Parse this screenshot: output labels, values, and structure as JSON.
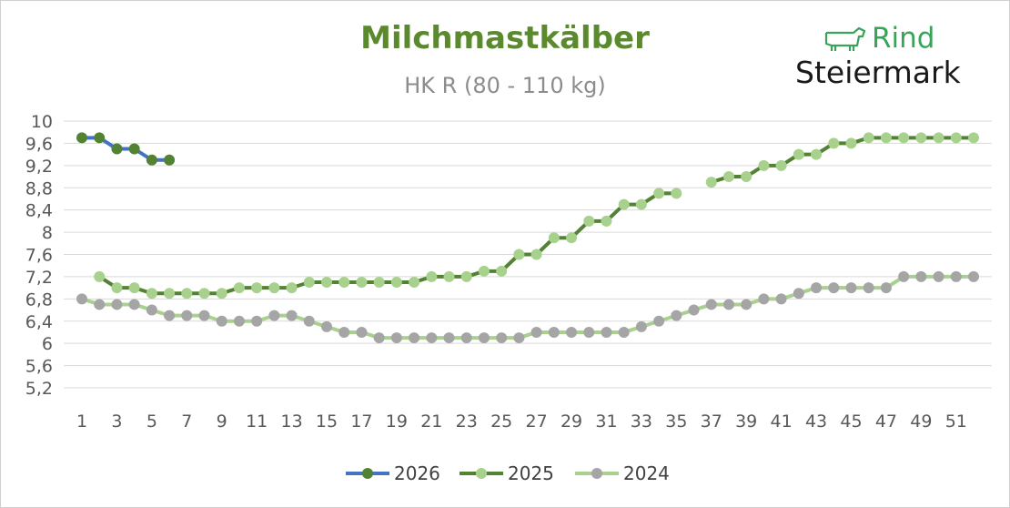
{
  "logo": {
    "word1": "Rind",
    "word2": "Steiermark",
    "icon": "cow-icon"
  },
  "chart_data": {
    "type": "line",
    "title": "Milchmastkälber",
    "subtitle": "HK R (80 - 110 kg)",
    "xlabel": "",
    "ylabel": "",
    "ylim": [
      5.2,
      10
    ],
    "yticks": [
      "10",
      "9,6",
      "9,2",
      "8,8",
      "8,4",
      "8",
      "7,6",
      "7,2",
      "6,8",
      "6,4",
      "6",
      "5,6",
      "5,2"
    ],
    "xticks": [
      "1",
      "3",
      "5",
      "7",
      "9",
      "11",
      "13",
      "15",
      "17",
      "19",
      "21",
      "23",
      "25",
      "27",
      "29",
      "31",
      "33",
      "35",
      "37",
      "39",
      "41",
      "43",
      "45",
      "47",
      "49",
      "51"
    ],
    "grid": true,
    "legend_position": "bottom",
    "colors": {
      "2026_line": "#4472c4",
      "2026_marker": "#548235",
      "2025_line": "#548235",
      "2025_marker": "#a9d18e",
      "2024_line": "#a9d18e",
      "2024_marker": "#a5a5a5"
    },
    "series": [
      {
        "name": "2026",
        "x": [
          1,
          2,
          3,
          4,
          5,
          6
        ],
        "values": [
          9.7,
          9.7,
          9.5,
          9.5,
          9.3,
          9.3
        ]
      },
      {
        "name": "2025",
        "x": [
          2,
          3,
          4,
          5,
          6,
          7,
          8,
          9,
          10,
          11,
          12,
          13,
          14,
          15,
          16,
          17,
          18,
          19,
          20,
          21,
          22,
          23,
          24,
          25,
          26,
          27,
          28,
          29,
          30,
          31,
          32,
          33,
          34,
          35,
          37,
          38,
          39,
          40,
          41,
          42,
          43,
          44,
          45,
          46,
          47,
          48,
          49,
          50,
          51,
          52
        ],
        "values": [
          7.2,
          7.0,
          7.0,
          6.9,
          6.9,
          6.9,
          6.9,
          6.9,
          7.0,
          7.0,
          7.0,
          7.0,
          7.1,
          7.1,
          7.1,
          7.1,
          7.1,
          7.1,
          7.1,
          7.2,
          7.2,
          7.2,
          7.3,
          7.3,
          7.6,
          7.6,
          7.9,
          7.9,
          8.2,
          8.2,
          8.5,
          8.5,
          8.7,
          8.7,
          8.9,
          9.0,
          9.0,
          9.2,
          9.2,
          9.4,
          9.4,
          9.6,
          9.6,
          9.7,
          9.7,
          9.7,
          9.7,
          9.7,
          9.7,
          9.7
        ]
      },
      {
        "name": "2024",
        "x": [
          1,
          2,
          3,
          4,
          5,
          6,
          7,
          8,
          9,
          10,
          11,
          12,
          13,
          14,
          15,
          16,
          17,
          18,
          19,
          20,
          21,
          22,
          23,
          24,
          25,
          26,
          27,
          28,
          29,
          30,
          31,
          32,
          33,
          34,
          35,
          36,
          37,
          38,
          39,
          40,
          41,
          42,
          43,
          44,
          45,
          46,
          47,
          48,
          49,
          50,
          51,
          52
        ],
        "values": [
          6.8,
          6.7,
          6.7,
          6.7,
          6.6,
          6.5,
          6.5,
          6.5,
          6.4,
          6.4,
          6.4,
          6.5,
          6.5,
          6.4,
          6.3,
          6.2,
          6.2,
          6.1,
          6.1,
          6.1,
          6.1,
          6.1,
          6.1,
          6.1,
          6.1,
          6.1,
          6.2,
          6.2,
          6.2,
          6.2,
          6.2,
          6.2,
          6.3,
          6.4,
          6.5,
          6.6,
          6.7,
          6.7,
          6.7,
          6.8,
          6.8,
          6.9,
          7.0,
          7.0,
          7.0,
          7.0,
          7.0,
          7.2,
          7.2,
          7.2,
          7.2,
          7.2
        ]
      }
    ]
  }
}
